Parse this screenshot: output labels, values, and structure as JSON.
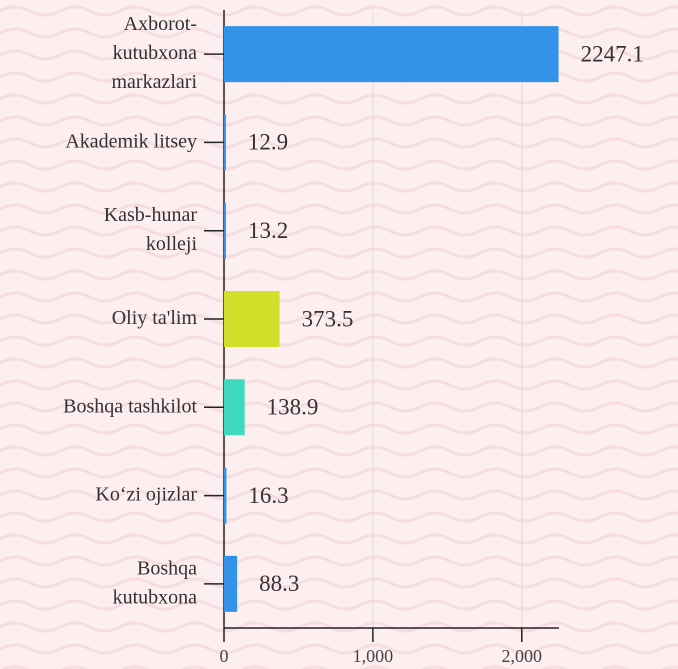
{
  "chart_data": {
    "type": "bar",
    "orientation": "horizontal",
    "categories": [
      [
        "Axborot-",
        "kutubxona",
        "markazlari"
      ],
      [
        "Akademik litsey"
      ],
      [
        "Kasb-hunar",
        "kolleji"
      ],
      [
        "Oliy ta'lim"
      ],
      [
        "Boshqa tashkilot"
      ],
      [
        "Ko‘zi ojizlar"
      ],
      [
        "Boshqa",
        "kutubxona"
      ]
    ],
    "values": [
      2247.1,
      12.9,
      13.2,
      373.5,
      138.9,
      16.3,
      88.3
    ],
    "colors": [
      "#3393e8",
      "#3393e8",
      "#3393e8",
      "#d4df2a",
      "#3dd9c1",
      "#3393e8",
      "#3393e8"
    ],
    "xlim": [
      0,
      2250
    ],
    "xticks": [
      0,
      {
        "value": 1000,
        "label": "1,000"
      },
      {
        "value": 2000,
        "label": "2,000"
      }
    ],
    "grid": true
  }
}
